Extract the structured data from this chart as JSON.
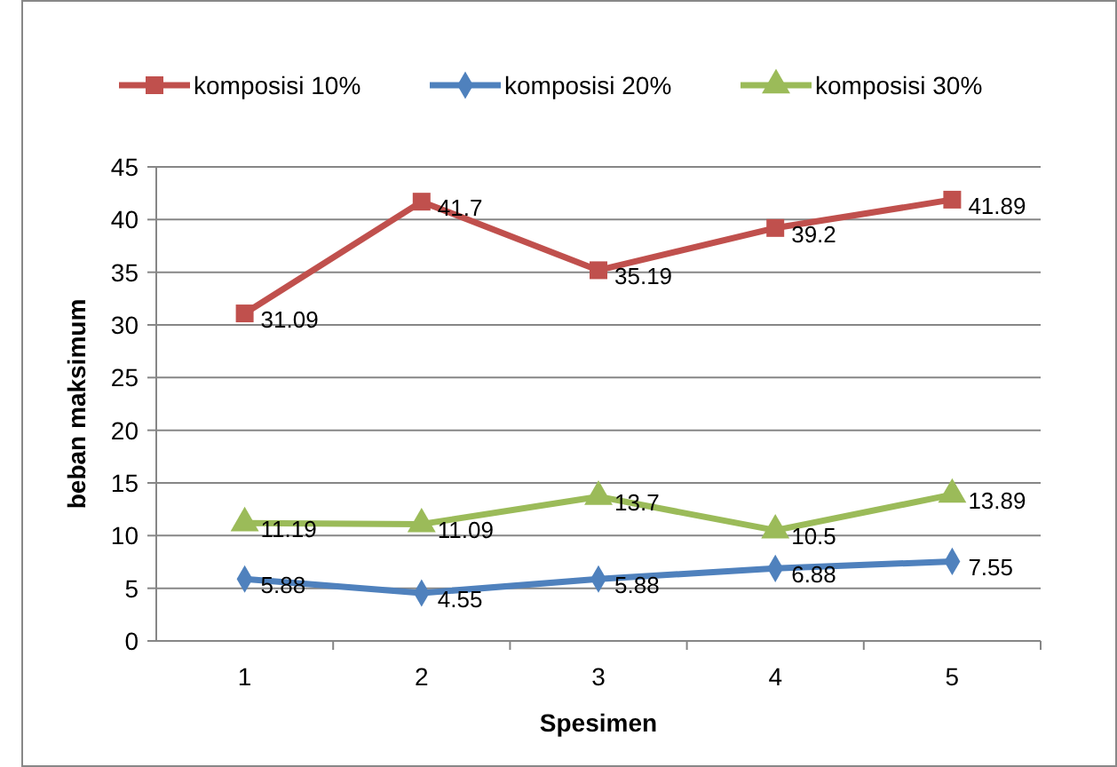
{
  "chart_data": {
    "type": "line",
    "xlabel": "Spesimen",
    "ylabel": "beban maksimum",
    "categories": [
      "1",
      "2",
      "3",
      "4",
      "5"
    ],
    "series": [
      {
        "name": "komposisi 10%",
        "color": "#c0504d",
        "marker": "square",
        "values": [
          31.09,
          41.7,
          35.19,
          39.2,
          41.89
        ]
      },
      {
        "name": "komposisi 20%",
        "color": "#4f81bd",
        "marker": "diamond",
        "values": [
          5.88,
          4.55,
          5.88,
          6.88,
          7.55
        ]
      },
      {
        "name": "komposisi 30%",
        "color": "#9bbb59",
        "marker": "triangle",
        "values": [
          11.19,
          11.09,
          13.7,
          10.5,
          13.89
        ]
      }
    ],
    "ylim": [
      0,
      45
    ],
    "yticks": [
      0,
      5,
      10,
      15,
      20,
      25,
      30,
      35,
      40,
      45
    ],
    "grid": "y",
    "legend": "top",
    "data_labels": true,
    "line_style": "solid"
  }
}
